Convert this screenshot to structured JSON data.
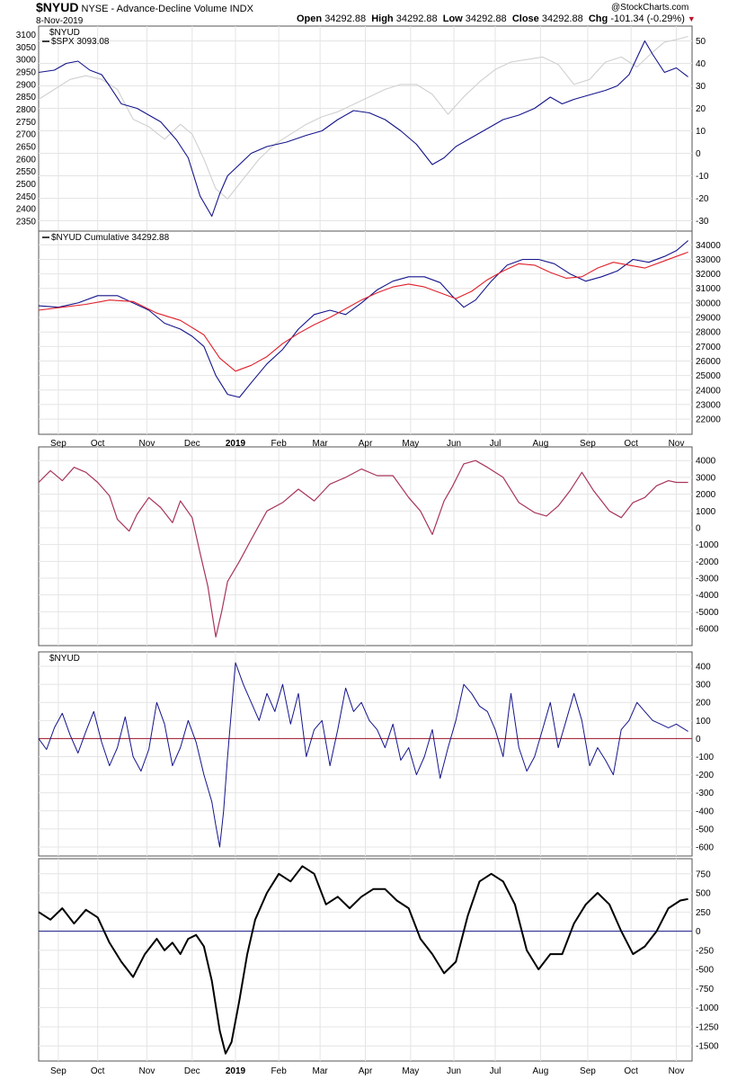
{
  "header": {
    "symbol": "$NYUD",
    "description": "NYSE - Advance-Decline Volume",
    "index": "INDX",
    "date": "8-Nov-2019",
    "open_label": "Open",
    "open": "34292.88",
    "high_label": "High",
    "high": "34292.88",
    "low_label": "Low",
    "low": "34292.88",
    "close_label": "Close",
    "close": "34292.88",
    "chg_label": "Chg",
    "chg": "-101.34 (-0.29%)",
    "chg_icon": "triangle-down-icon",
    "watermark": "@StockCharts.com"
  },
  "colors": {
    "navy": "#14148c",
    "gray": "#d0d0d0",
    "red": "#e0202a",
    "maroon": "#a8345c",
    "black": "#000000",
    "grid": "#e4e4e4",
    "zero_red": "#a01428",
    "zero_navy": "#1a1a8a",
    "down": "#c0102a"
  },
  "x_axis": {
    "months": [
      "Sep",
      "Oct",
      "Nov",
      "Dec",
      "2019",
      "Feb",
      "Mar",
      "Apr",
      "May",
      "Jun",
      "Jul",
      "Aug",
      "Sep",
      "Oct",
      "Nov"
    ],
    "month_pos": [
      0.5,
      1.5,
      2.75,
      3.9,
      5.0,
      6.1,
      7.15,
      8.3,
      9.45,
      10.55,
      11.6,
      12.75,
      13.95,
      15.05,
      16.2
    ]
  },
  "chart_data": [
    {
      "type": "line",
      "panel": 1,
      "legend": [
        "$NYUD",
        "$SPX 3093.08"
      ],
      "y_left_ticks": [
        2350,
        2400,
        2450,
        2500,
        2550,
        2600,
        2650,
        2700,
        2750,
        2800,
        2850,
        2900,
        2950,
        3000,
        3050,
        3100
      ],
      "y_right_ticks": [
        -30,
        -20,
        -10,
        0,
        10,
        20,
        30,
        40,
        50
      ],
      "ylim_left": [
        2325,
        3120
      ],
      "ylim_right": [
        -33,
        55
      ],
      "series": [
        {
          "name": "$NYUD",
          "axis": "right",
          "x": [
            0,
            0.4,
            0.7,
            1,
            1.3,
            1.6,
            1.8,
            2.1,
            2.5,
            2.8,
            3.1,
            3.5,
            3.8,
            4.1,
            4.4,
            4.6,
            4.8,
            5.1,
            5.4,
            5.8,
            6.3,
            6.8,
            7.2,
            7.6,
            8,
            8.4,
            8.8,
            9.2,
            9.6,
            10,
            10.3,
            10.6,
            11,
            11.4,
            11.8,
            12.2,
            12.6,
            13,
            13.3,
            13.6,
            14,
            14.4,
            14.7,
            15,
            15.4,
            15.6,
            15.9,
            16.2,
            16.5
          ],
          "y": [
            36,
            37,
            40,
            41,
            37,
            35,
            30,
            22,
            20,
            17,
            14,
            6,
            -2,
            -19,
            -28,
            -18,
            -10,
            -5,
            0,
            3,
            5,
            8,
            10,
            15,
            19,
            18,
            15,
            10,
            4,
            -5,
            -2,
            3,
            7,
            11,
            15,
            17,
            20,
            25,
            22,
            24,
            26,
            28,
            30,
            35,
            50,
            44,
            36,
            38,
            34
          ]
        },
        {
          "name": "$SPX 3093.08",
          "axis": "left",
          "x": [
            0,
            0.4,
            0.8,
            1.2,
            1.6,
            2,
            2.4,
            2.8,
            3.2,
            3.6,
            3.9,
            4.2,
            4.5,
            4.8,
            5.2,
            5.6,
            6,
            6.4,
            6.8,
            7.2,
            7.6,
            8,
            8.4,
            8.8,
            9.2,
            9.6,
            10,
            10.4,
            10.8,
            11.2,
            11.6,
            12,
            12.4,
            12.8,
            13.2,
            13.6,
            14,
            14.4,
            14.8,
            15.2,
            15.6,
            15.9,
            16.2,
            16.5
          ],
          "y": [
            2840,
            2880,
            2920,
            2935,
            2920,
            2880,
            2760,
            2730,
            2680,
            2740,
            2700,
            2600,
            2480,
            2440,
            2520,
            2600,
            2660,
            2700,
            2740,
            2770,
            2790,
            2820,
            2850,
            2880,
            2900,
            2900,
            2860,
            2780,
            2850,
            2910,
            2960,
            2990,
            3000,
            3010,
            2980,
            2900,
            2920,
            2990,
            3010,
            2970,
            3030,
            3070,
            3080,
            3093
          ]
        }
      ]
    },
    {
      "type": "line",
      "panel": 2,
      "legend": [
        "$NYUD Cumulative 34292.88"
      ],
      "y_right_ticks": [
        22000,
        23000,
        24000,
        25000,
        26000,
        27000,
        28000,
        29000,
        30000,
        31000,
        32000,
        33000,
        34000
      ],
      "ylim_right": [
        21200,
        34700
      ],
      "series": [
        {
          "name": "$NYUD Cumulative 34292.88",
          "x": [
            0,
            0.5,
            1,
            1.5,
            2,
            2.4,
            2.8,
            3.2,
            3.6,
            3.9,
            4.2,
            4.5,
            4.8,
            5.1,
            5.4,
            5.8,
            6.2,
            6.6,
            7,
            7.4,
            7.8,
            8.2,
            8.6,
            9,
            9.4,
            9.8,
            10.2,
            10.5,
            10.8,
            11.1,
            11.5,
            11.9,
            12.3,
            12.7,
            13.1,
            13.5,
            13.9,
            14.3,
            14.7,
            15.1,
            15.5,
            15.9,
            16.2,
            16.5
          ],
          "y": [
            29800,
            29700,
            30000,
            30500,
            30500,
            30000,
            29500,
            28600,
            28200,
            27700,
            27000,
            25000,
            23700,
            23500,
            24500,
            25800,
            26800,
            28200,
            29200,
            29500,
            29200,
            30000,
            30900,
            31500,
            31800,
            31800,
            31400,
            30500,
            29700,
            30200,
            31500,
            32600,
            33000,
            33000,
            32700,
            32000,
            31500,
            31800,
            32200,
            33000,
            32800,
            33200,
            33600,
            34292.88
          ]
        },
        {
          "name": "",
          "x": [
            0,
            0.6,
            1.2,
            1.8,
            2.4,
            3,
            3.6,
            4.2,
            4.6,
            5,
            5.4,
            5.8,
            6.2,
            6.6,
            7,
            7.4,
            7.8,
            8.2,
            8.6,
            9,
            9.4,
            9.8,
            10.2,
            10.6,
            11,
            11.4,
            11.8,
            12.2,
            12.6,
            13,
            13.4,
            13.8,
            14.2,
            14.6,
            15,
            15.4,
            15.8,
            16.2,
            16.5
          ],
          "y": [
            29500,
            29700,
            29900,
            30200,
            30100,
            29300,
            28800,
            27800,
            26200,
            25300,
            25700,
            26300,
            27200,
            27900,
            28500,
            29000,
            29600,
            30200,
            30700,
            31100,
            31300,
            31100,
            30700,
            30300,
            30800,
            31600,
            32200,
            32700,
            32600,
            32100,
            31700,
            31800,
            32400,
            32800,
            32600,
            32400,
            32800,
            33200,
            33500
          ]
        }
      ]
    },
    {
      "type": "line",
      "panel": 3,
      "y_right_ticks": [
        -6000,
        -5000,
        -4000,
        -3000,
        -2000,
        -1000,
        0,
        1000,
        2000,
        3000,
        4000
      ],
      "ylim_right": [
        -6800,
        4600
      ],
      "series": [
        {
          "name": "",
          "x": [
            0,
            0.3,
            0.6,
            0.9,
            1.2,
            1.5,
            1.8,
            2,
            2.3,
            2.5,
            2.8,
            3.1,
            3.4,
            3.6,
            3.9,
            4.1,
            4.3,
            4.5,
            4.65,
            4.8,
            5.1,
            5.4,
            5.8,
            6.2,
            6.6,
            7,
            7.4,
            7.8,
            8.2,
            8.6,
            9,
            9.4,
            9.7,
            10,
            10.3,
            10.5,
            10.8,
            11.1,
            11.4,
            11.8,
            12.2,
            12.6,
            12.9,
            13.2,
            13.5,
            13.8,
            14.1,
            14.5,
            14.8,
            15.1,
            15.4,
            15.7,
            16,
            16.2,
            16.5
          ],
          "y": [
            2700,
            3400,
            2800,
            3600,
            3300,
            2700,
            1900,
            500,
            -200,
            800,
            1800,
            1200,
            300,
            1600,
            600,
            -1500,
            -3500,
            -6500,
            -5000,
            -3200,
            -2000,
            -700,
            1000,
            1500,
            2300,
            1600,
            2600,
            3000,
            3500,
            3100,
            3100,
            1800,
            1000,
            -400,
            1600,
            2400,
            3800,
            4000,
            3600,
            3000,
            1500,
            900,
            700,
            1300,
            2200,
            3300,
            2200,
            1000,
            600,
            1500,
            1800,
            2500,
            2800,
            2700,
            2700
          ]
        }
      ]
    },
    {
      "type": "line",
      "panel": 4,
      "legend": [
        "$NYUD"
      ],
      "y_right_ticks": [
        -600,
        -500,
        -400,
        -300,
        -200,
        -100,
        0,
        100,
        200,
        300,
        400
      ],
      "ylim_right": [
        -630,
        460
      ],
      "series": [
        {
          "name": "$NYUD",
          "x": [
            0,
            0.2,
            0.4,
            0.6,
            0.8,
            1,
            1.2,
            1.4,
            1.6,
            1.8,
            2,
            2.2,
            2.4,
            2.6,
            2.8,
            3,
            3.2,
            3.4,
            3.6,
            3.8,
            4,
            4.2,
            4.4,
            4.5,
            4.6,
            4.7,
            4.8,
            5,
            5.2,
            5.4,
            5.6,
            5.8,
            6,
            6.2,
            6.4,
            6.6,
            6.8,
            7,
            7.2,
            7.4,
            7.6,
            7.8,
            8,
            8.2,
            8.4,
            8.6,
            8.8,
            9,
            9.2,
            9.4,
            9.6,
            9.8,
            10,
            10.2,
            10.4,
            10.6,
            10.8,
            11,
            11.2,
            11.4,
            11.6,
            11.8,
            12,
            12.2,
            12.4,
            12.6,
            12.8,
            13,
            13.2,
            13.4,
            13.6,
            13.8,
            14,
            14.2,
            14.4,
            14.6,
            14.8,
            15,
            15.2,
            15.4,
            15.6,
            15.8,
            16,
            16.2,
            16.5
          ],
          "y": [
            0,
            -60,
            60,
            140,
            20,
            -80,
            40,
            150,
            -20,
            -150,
            -50,
            120,
            -100,
            -180,
            -60,
            200,
            80,
            -150,
            -50,
            100,
            -20,
            -200,
            -350,
            -480,
            -600,
            -400,
            -100,
            420,
            300,
            200,
            100,
            250,
            150,
            300,
            80,
            250,
            -100,
            50,
            100,
            -150,
            50,
            280,
            150,
            200,
            100,
            50,
            -50,
            80,
            -120,
            -50,
            -200,
            -100,
            50,
            -220,
            -50,
            100,
            300,
            250,
            180,
            150,
            50,
            -100,
            250,
            -50,
            -180,
            -100,
            50,
            200,
            -50,
            100,
            250,
            100,
            -150,
            -50,
            -120,
            -200,
            50,
            100,
            200,
            150,
            100,
            80,
            60,
            80,
            40
          ]
        }
      ]
    },
    {
      "type": "line",
      "panel": 5,
      "y_right_ticks": [
        -1500,
        -1250,
        -1000,
        -750,
        -500,
        -250,
        0,
        250,
        500,
        750
      ],
      "ylim_right": [
        -1650,
        900
      ],
      "series": [
        {
          "name": "",
          "x": [
            0,
            0.3,
            0.6,
            0.9,
            1.2,
            1.5,
            1.8,
            2.1,
            2.4,
            2.7,
            3,
            3.2,
            3.4,
            3.6,
            3.8,
            4,
            4.2,
            4.4,
            4.6,
            4.75,
            4.9,
            5.1,
            5.3,
            5.5,
            5.8,
            6.1,
            6.4,
            6.7,
            7,
            7.3,
            7.6,
            7.9,
            8.2,
            8.5,
            8.8,
            9.1,
            9.4,
            9.7,
            10,
            10.3,
            10.6,
            10.9,
            11.2,
            11.5,
            11.8,
            12.1,
            12.4,
            12.7,
            13,
            13.3,
            13.6,
            13.9,
            14.2,
            14.5,
            14.8,
            15.1,
            15.4,
            15.7,
            16,
            16.3,
            16.5
          ],
          "y": [
            250,
            150,
            300,
            100,
            280,
            180,
            -150,
            -400,
            -600,
            -300,
            -100,
            -250,
            -150,
            -300,
            -100,
            -50,
            -200,
            -650,
            -1300,
            -1600,
            -1450,
            -900,
            -300,
            150,
            500,
            750,
            650,
            850,
            750,
            350,
            450,
            300,
            450,
            550,
            550,
            400,
            300,
            -100,
            -300,
            -550,
            -400,
            200,
            650,
            750,
            650,
            350,
            -250,
            -500,
            -300,
            -300,
            100,
            350,
            500,
            350,
            0,
            -300,
            -200,
            0,
            300,
            400,
            420
          ]
        }
      ]
    }
  ]
}
